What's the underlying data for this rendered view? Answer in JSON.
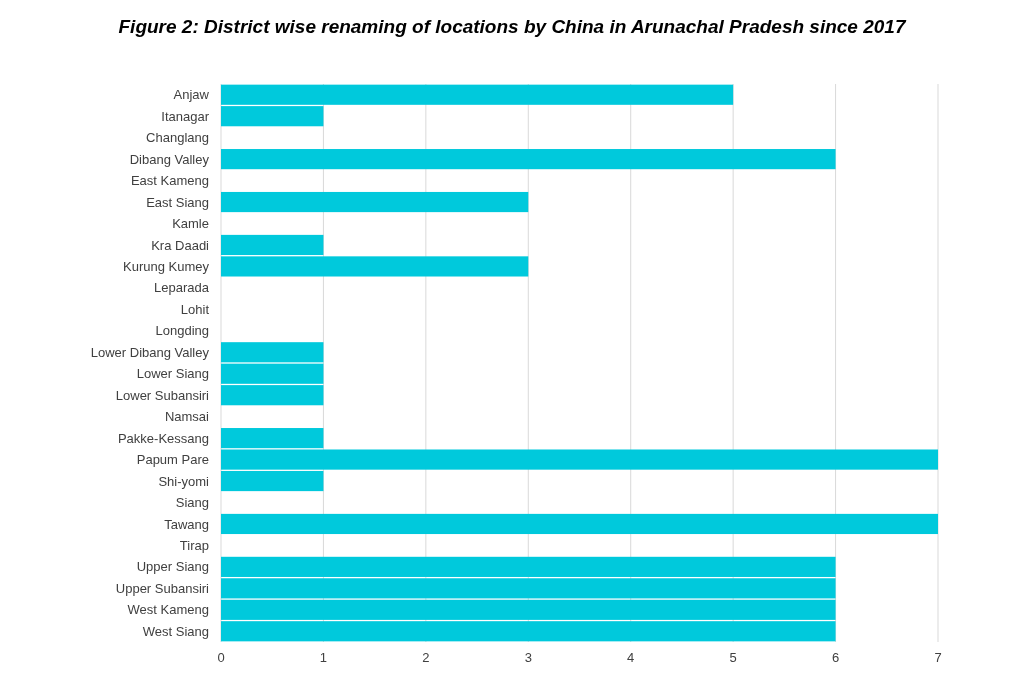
{
  "chart_data": {
    "type": "bar",
    "orientation": "horizontal",
    "title": "Figure 2: District wise renaming of locations by China in Arunachal Pradesh since 2017",
    "categories": [
      "Anjaw",
      "Itanagar",
      "Changlang",
      "Dibang Valley",
      "East Kameng",
      "East Siang",
      "Kamle",
      "Kra Daadi",
      "Kurung Kumey",
      "Leparada",
      "Lohit",
      "Longding",
      "Lower Dibang Valley",
      "Lower Siang",
      "Lower Subansiri",
      "Namsai",
      "Pakke-Kessang",
      "Papum Pare",
      "Shi-yomi",
      "Siang",
      "Tawang",
      "Tirap",
      "Upper Siang",
      "Upper Subansiri",
      "West Kameng",
      "West Siang"
    ],
    "values": [
      5,
      1,
      0,
      6,
      0,
      3,
      0,
      1,
      3,
      0,
      0,
      0,
      1,
      1,
      1,
      0,
      1,
      7,
      1,
      0,
      7,
      0,
      6,
      6,
      6,
      6
    ],
    "color": "#00c9dc",
    "xlim": [
      0,
      7
    ],
    "xticks": [
      0,
      1,
      2,
      3,
      4,
      5,
      6,
      7
    ],
    "grid": "x"
  }
}
